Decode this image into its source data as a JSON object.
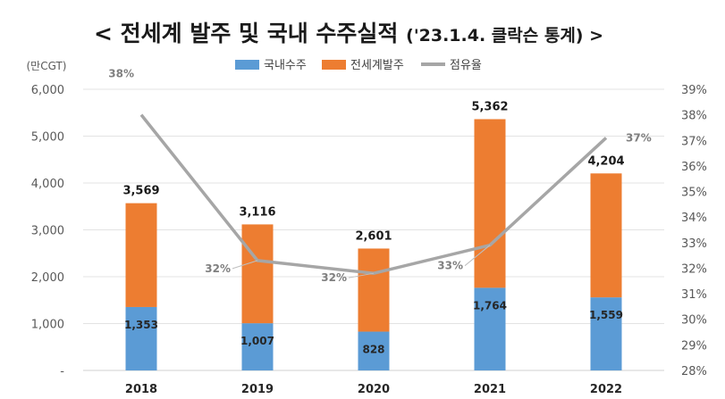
{
  "page": {
    "title": "< 전세계 발주 및 국내 수주실적 ",
    "subtitle": "('23.1.4. 클락슨 통계) >"
  },
  "colors": {
    "domestic": "#5b9bd5",
    "global": "#ed7d31",
    "share": "#a6a6a6",
    "share_label": "#7f7f7f"
  },
  "chart_data": {
    "type": "bar",
    "stacked": true,
    "title": "",
    "unit_label": "(만CGT)",
    "categories": [
      "2018",
      "2019",
      "2020",
      "2021",
      "2022"
    ],
    "series": [
      {
        "name": "국내수주",
        "values": [
          1353,
          1007,
          828,
          1764,
          1559
        ]
      },
      {
        "name": "전세계발주",
        "values": [
          3569,
          3116,
          2601,
          5362,
          4204
        ]
      }
    ],
    "bar_labels": {
      "totals": [
        "3,569",
        "3,116",
        "2,601",
        "5,362",
        "4,204"
      ],
      "domestic": [
        "1,353",
        "1,007",
        "828",
        "1,764",
        "1,559"
      ]
    },
    "line_series": {
      "name": "점유율",
      "values": [
        38,
        32.3,
        31.8,
        32.9,
        37.1
      ],
      "labels": [
        "38%",
        "32%",
        "32%",
        "33%",
        "37%"
      ]
    },
    "y_left": {
      "min": 0,
      "max": 6000,
      "step": 1000,
      "ticks": [
        "-",
        "1,000",
        "2,000",
        "3,000",
        "4,000",
        "5,000",
        "6,000"
      ]
    },
    "y_right": {
      "min": 28,
      "max": 39,
      "step": 1,
      "ticks": [
        "28%",
        "29%",
        "30%",
        "31%",
        "32%",
        "33%",
        "34%",
        "35%",
        "36%",
        "37%",
        "38%",
        "39%"
      ]
    },
    "legend_position": "top-center",
    "grid": true
  }
}
